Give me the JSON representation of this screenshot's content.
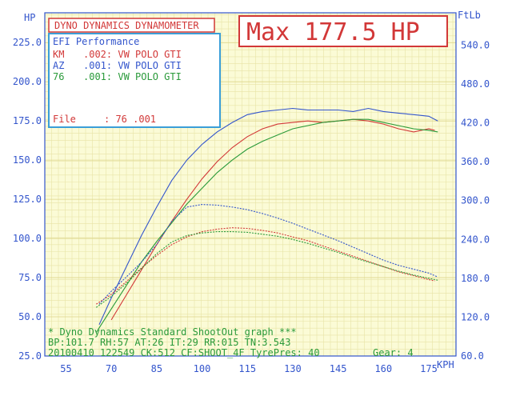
{
  "chart_data": {
    "type": "line",
    "title": "DYNO DYNAMICS DYNAMOMETER",
    "max_label": "Max 177.5 HP",
    "y_left_label": "HP",
    "y_right_label": "FtLb",
    "x_label": "KPH",
    "y_left_ticks": [
      "25.0",
      "50.0",
      "75.0",
      "100.0",
      "125.0",
      "150.0",
      "175.0",
      "200.0",
      "225.0"
    ],
    "y_right_ticks": [
      "60.0",
      "120.0",
      "180.0",
      "240.0",
      "300.0",
      "360.0",
      "420.0",
      "480.0",
      "540.0"
    ],
    "x_ticks": [
      "55",
      "70",
      "85",
      "100",
      "115",
      "130",
      "145",
      "160",
      "175"
    ],
    "xlim": [
      48,
      184
    ],
    "ylim_left": [
      25,
      244
    ],
    "ylim_right": [
      60,
      590
    ],
    "grid": true,
    "legend": {
      "title": "EFI Performance",
      "entries": [
        {
          "code": "KM",
          "value": ".002: VW POLO GTI",
          "color": "#d23838"
        },
        {
          "code": "AZ",
          "value": ".001: VW POLO GTI",
          "color": "#3355cc"
        },
        {
          "code": "76",
          "value": ".001: VW POLO GTI",
          "color": "#2a9a3a"
        }
      ],
      "file_label": "File",
      "file_value": ": 76     .001"
    },
    "series": [
      {
        "name": "KM .002: VW POLO GTI",
        "kind": "power",
        "color": "#d23838",
        "x": [
          70,
          75,
          80,
          85,
          90,
          95,
          100,
          105,
          110,
          115,
          120,
          125,
          130,
          135,
          140,
          145,
          150,
          155,
          160,
          165,
          170,
          175,
          177
        ],
        "y": [
          48,
          64,
          80,
          96,
          111,
          125,
          138,
          149,
          158,
          165,
          170,
          173,
          174,
          175,
          174,
          175,
          176,
          175,
          173,
          170,
          168,
          170,
          169
        ]
      },
      {
        "name": "AZ .001: VW POLO GTI",
        "kind": "power",
        "color": "#3355cc",
        "x": [
          66,
          70,
          75,
          80,
          85,
          90,
          95,
          100,
          105,
          110,
          115,
          120,
          125,
          130,
          135,
          140,
          145,
          150,
          155,
          160,
          165,
          170,
          175,
          178
        ],
        "y": [
          45,
          62,
          82,
          102,
          120,
          137,
          150,
          160,
          168,
          174,
          179,
          181,
          182,
          183,
          182,
          182,
          182,
          181,
          183,
          181,
          180,
          179,
          178,
          175
        ]
      },
      {
        "name": "76 .001: VW POLO GTI",
        "kind": "power",
        "color": "#2a9a3a",
        "x": [
          65,
          70,
          75,
          80,
          85,
          90,
          95,
          100,
          105,
          110,
          115,
          120,
          125,
          130,
          135,
          140,
          145,
          150,
          155,
          160,
          165,
          170,
          175,
          178
        ],
        "y": [
          40,
          55,
          70,
          85,
          98,
          110,
          122,
          132,
          142,
          150,
          157,
          162,
          166,
          170,
          172,
          174,
          175,
          176,
          176,
          174,
          172,
          170,
          169,
          168
        ]
      },
      {
        "name": "KM .002: VW POLO GTI",
        "kind": "torque",
        "color": "#d23838",
        "x": [
          65,
          70,
          75,
          80,
          85,
          90,
          95,
          100,
          105,
          110,
          115,
          120,
          125,
          130,
          135,
          140,
          145,
          150,
          155,
          160,
          165,
          170,
          175,
          177
        ],
        "y": [
          140,
          155,
          175,
          196,
          215,
          232,
          244,
          252,
          256,
          258,
          257,
          254,
          250,
          244,
          238,
          230,
          222,
          214,
          206,
          198,
          190,
          184,
          178,
          176
        ]
      },
      {
        "name": "AZ .001: VW POLO GTI",
        "kind": "torque",
        "color": "#3355cc",
        "x": [
          66,
          70,
          75,
          80,
          85,
          90,
          95,
          100,
          105,
          110,
          115,
          120,
          125,
          130,
          135,
          140,
          145,
          150,
          155,
          160,
          165,
          170,
          175,
          178
        ],
        "y": [
          140,
          160,
          182,
          205,
          232,
          268,
          290,
          294,
          293,
          290,
          286,
          280,
          273,
          265,
          256,
          247,
          238,
          228,
          218,
          208,
          200,
          194,
          188,
          182
        ]
      },
      {
        "name": "76 .001: VW POLO GTI",
        "kind": "torque",
        "color": "#2a9a3a",
        "x": [
          65,
          70,
          75,
          80,
          85,
          90,
          95,
          100,
          105,
          110,
          115,
          120,
          125,
          130,
          135,
          140,
          145,
          150,
          155,
          160,
          165,
          170,
          175,
          178
        ],
        "y": [
          135,
          152,
          172,
          195,
          218,
          236,
          246,
          250,
          252,
          252,
          251,
          248,
          245,
          240,
          234,
          227,
          220,
          212,
          205,
          198,
          191,
          185,
          180,
          177
        ]
      }
    ],
    "footer": {
      "line1": "* Dyno Dynamics Standard ShootOut graph ***",
      "line2": "BP:101.7 RH:57 AT:26 IT:29  RR:015 TN:3.543",
      "line3": "20100410 122549 CK:512 CF:SHOOT_4F TyrePres: 40",
      "gear": "Gear: 4"
    }
  }
}
